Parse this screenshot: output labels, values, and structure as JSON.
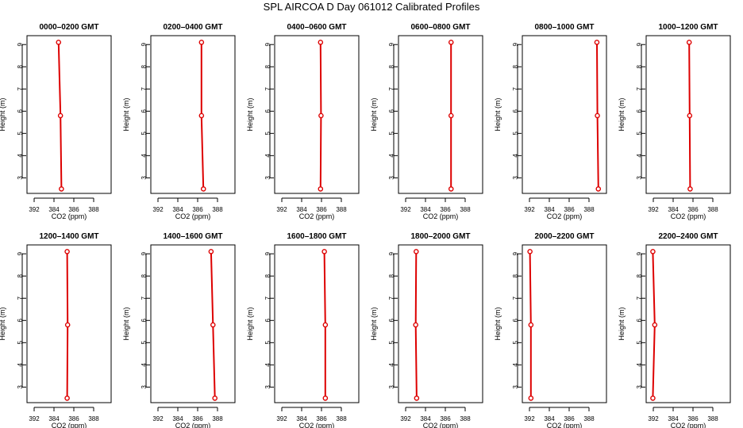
{
  "title": "SPL AIRCOA D  Day 061012  Calibrated Profiles",
  "colors": {
    "series": "#dd0000",
    "axis": "#000000",
    "background": "#ffffff"
  },
  "axes": {
    "xlabel": "CO2 (ppm)",
    "ylabel": "Height (m)",
    "xlim": [
      390.5,
      388.5
    ],
    "x_ticks": [
      392,
      384,
      386,
      388
    ],
    "ylim": [
      2.3,
      9.4
    ],
    "y_ticks": [
      3,
      4,
      5,
      6,
      7,
      8,
      9
    ]
  },
  "chart_data": [
    {
      "type": "line",
      "title": "0000–0200 GMT",
      "points": [
        {
          "x": 383.5,
          "y": 9.1
        },
        {
          "x": 383.7,
          "y": 5.8
        },
        {
          "x": 383.8,
          "y": 2.5
        }
      ]
    },
    {
      "type": "line",
      "title": "0200–0400 GMT",
      "points": [
        {
          "x": 385.5,
          "y": 9.1
        },
        {
          "x": 385.5,
          "y": 5.8
        },
        {
          "x": 385.7,
          "y": 2.5
        }
      ]
    },
    {
      "type": "line",
      "title": "0400–0600 GMT",
      "points": [
        {
          "x": 385.0,
          "y": 9.1
        },
        {
          "x": 385.05,
          "y": 5.8
        },
        {
          "x": 385.0,
          "y": 2.5
        }
      ]
    },
    {
      "type": "line",
      "title": "0600–0800 GMT",
      "points": [
        {
          "x": 385.7,
          "y": 9.1
        },
        {
          "x": 385.7,
          "y": 5.8
        },
        {
          "x": 385.7,
          "y": 2.5
        }
      ]
    },
    {
      "type": "line",
      "title": "0800–1000 GMT",
      "points": [
        {
          "x": 388.0,
          "y": 9.1
        },
        {
          "x": 388.05,
          "y": 5.8
        },
        {
          "x": 388.15,
          "y": 2.5
        }
      ]
    },
    {
      "type": "line",
      "title": "1000–1200 GMT",
      "points": [
        {
          "x": 384.7,
          "y": 9.1
        },
        {
          "x": 384.75,
          "y": 5.8
        },
        {
          "x": 384.8,
          "y": 2.5
        }
      ]
    },
    {
      "type": "line",
      "title": "1200–1400 GMT",
      "points": [
        {
          "x": 384.4,
          "y": 9.1
        },
        {
          "x": 384.45,
          "y": 5.8
        },
        {
          "x": 384.4,
          "y": 2.5
        }
      ]
    },
    {
      "type": "line",
      "title": "1400–1600 GMT",
      "points": [
        {
          "x": 386.5,
          "y": 9.1
        },
        {
          "x": 386.7,
          "y": 5.8
        },
        {
          "x": 386.9,
          "y": 2.5
        }
      ]
    },
    {
      "type": "line",
      "title": "1600–1800 GMT",
      "points": [
        {
          "x": 385.4,
          "y": 9.1
        },
        {
          "x": 385.5,
          "y": 5.8
        },
        {
          "x": 385.5,
          "y": 2.5
        }
      ]
    },
    {
      "type": "line",
      "title": "1800–2000 GMT",
      "points": [
        {
          "x": 382.05,
          "y": 9.1
        },
        {
          "x": 382.0,
          "y": 5.8
        },
        {
          "x": 382.1,
          "y": 2.5
        }
      ]
    },
    {
      "type": "line",
      "title": "2000–2200 GMT",
      "points": [
        {
          "x": 381.0,
          "y": 9.1
        },
        {
          "x": 381.1,
          "y": 5.8
        },
        {
          "x": 381.1,
          "y": 2.5
        }
      ]
    },
    {
      "type": "line",
      "title": "2200–2400 GMT",
      "points": [
        {
          "x": 380.9,
          "y": 9.1
        },
        {
          "x": 381.1,
          "y": 5.8
        },
        {
          "x": 380.9,
          "y": 2.5
        }
      ]
    }
  ]
}
